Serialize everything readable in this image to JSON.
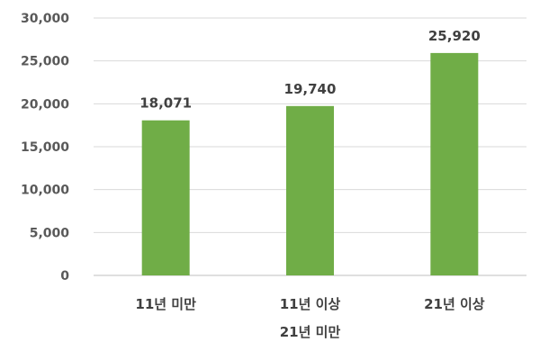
{
  "chart_data": {
    "type": "bar",
    "categories": [
      [
        "11년 미만"
      ],
      [
        "11년 이상",
        "21년 미만"
      ],
      [
        "21년 이상"
      ]
    ],
    "values": [
      18071,
      19740,
      25920
    ],
    "value_labels": [
      "18,071",
      "19,740",
      "25,920"
    ],
    "y_ticks": [
      {
        "value": 0,
        "label": "0"
      },
      {
        "value": 5000,
        "label": "5,000"
      },
      {
        "value": 10000,
        "label": "10,000"
      },
      {
        "value": 15000,
        "label": "15,000"
      },
      {
        "value": 20000,
        "label": "20,000"
      },
      {
        "value": 25000,
        "label": "25,000"
      },
      {
        "value": 30000,
        "label": "30,000"
      }
    ],
    "ylim": [
      0,
      30000
    ],
    "grid": true,
    "legend": "none",
    "bar_color": "#70ad47"
  }
}
